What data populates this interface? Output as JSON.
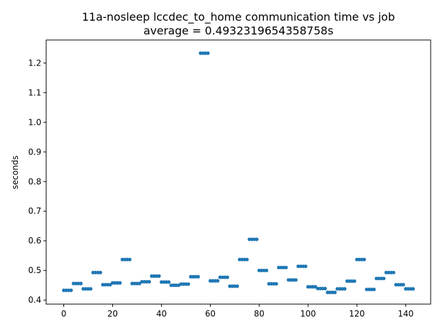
{
  "chart_data": {
    "type": "scatter",
    "title": "11a-nosleep lccdec_to_home communication time vs job",
    "subtitle": "average = 0.4932319654358758s",
    "xlabel": "",
    "ylabel": "seconds",
    "xlim": [
      -7.2,
      150.2
    ],
    "ylim": [
      0.3865,
      1.2775
    ],
    "xticks": [
      0,
      20,
      40,
      60,
      80,
      100,
      120,
      140
    ],
    "yticks": [
      0.4,
      0.5,
      0.6,
      0.7,
      0.8,
      0.9,
      1.0,
      1.1,
      1.2
    ],
    "ytick_labels": [
      "0.4",
      "0.5",
      "0.6",
      "0.7",
      "0.8",
      "0.9",
      "1.0",
      "1.1",
      "1.2"
    ],
    "grid": false,
    "marker_color": "#1f77b4",
    "series": [
      {
        "x": [
          0,
          1,
          2,
          3,
          4,
          5,
          6,
          7,
          8,
          9,
          10,
          11,
          12,
          13,
          14,
          15,
          16,
          17,
          18,
          19,
          20,
          21,
          22,
          23,
          24,
          25,
          26,
          27,
          28,
          29,
          30,
          31,
          32,
          33,
          34,
          35,
          36,
          37,
          38,
          39,
          40,
          41,
          42,
          43,
          44,
          45,
          46,
          47,
          48,
          49,
          50,
          51,
          52,
          53,
          54,
          55,
          56,
          57,
          58,
          59,
          60,
          61,
          62,
          63,
          64,
          65,
          66,
          67,
          68,
          69,
          70,
          71,
          72,
          73,
          74,
          75,
          76,
          77,
          78,
          79,
          80,
          81,
          82,
          83,
          84,
          85,
          86,
          87,
          88,
          89,
          90,
          91,
          92,
          93,
          94,
          95,
          96,
          97,
          98,
          99,
          100,
          101,
          102,
          103,
          104,
          105,
          106,
          107,
          108,
          109,
          110,
          111,
          112,
          113,
          114,
          115,
          116,
          117,
          118,
          119,
          120,
          121,
          122,
          123,
          124,
          125,
          126,
          127,
          128,
          129,
          130,
          131,
          132,
          133,
          134,
          135,
          136,
          137,
          138,
          139,
          140,
          141,
          142,
          143
        ],
        "y": [
          0.433,
          0.433,
          0.433,
          0.433,
          0.456,
          0.456,
          0.456,
          0.456,
          0.438,
          0.438,
          0.438,
          0.438,
          0.493,
          0.493,
          0.493,
          0.493,
          0.452,
          0.452,
          0.452,
          0.452,
          0.458,
          0.458,
          0.458,
          0.458,
          0.537,
          0.537,
          0.537,
          0.537,
          0.456,
          0.456,
          0.456,
          0.456,
          0.462,
          0.462,
          0.462,
          0.462,
          0.481,
          0.481,
          0.481,
          0.481,
          0.461,
          0.461,
          0.461,
          0.461,
          0.45,
          0.45,
          0.45,
          0.45,
          0.454,
          0.454,
          0.454,
          0.454,
          0.479,
          0.479,
          0.479,
          0.479,
          1.233,
          1.233,
          1.233,
          1.233,
          0.465,
          0.465,
          0.465,
          0.465,
          0.477,
          0.477,
          0.477,
          0.477,
          0.447,
          0.447,
          0.447,
          0.447,
          0.537,
          0.537,
          0.537,
          0.537,
          0.605,
          0.605,
          0.605,
          0.605,
          0.5,
          0.5,
          0.5,
          0.5,
          0.455,
          0.455,
          0.455,
          0.455,
          0.51,
          0.51,
          0.51,
          0.51,
          0.468,
          0.468,
          0.468,
          0.468,
          0.514,
          0.514,
          0.514,
          0.514,
          0.445,
          0.445,
          0.445,
          0.445,
          0.439,
          0.439,
          0.439,
          0.439,
          0.426,
          0.426,
          0.426,
          0.426,
          0.438,
          0.438,
          0.438,
          0.438,
          0.464,
          0.464,
          0.464,
          0.464,
          0.537,
          0.537,
          0.537,
          0.537,
          0.436,
          0.436,
          0.436,
          0.436,
          0.473,
          0.473,
          0.473,
          0.473,
          0.493,
          0.493,
          0.493,
          0.493,
          0.452,
          0.452,
          0.452,
          0.452,
          0.438,
          0.438,
          0.438,
          0.438
        ]
      }
    ]
  }
}
